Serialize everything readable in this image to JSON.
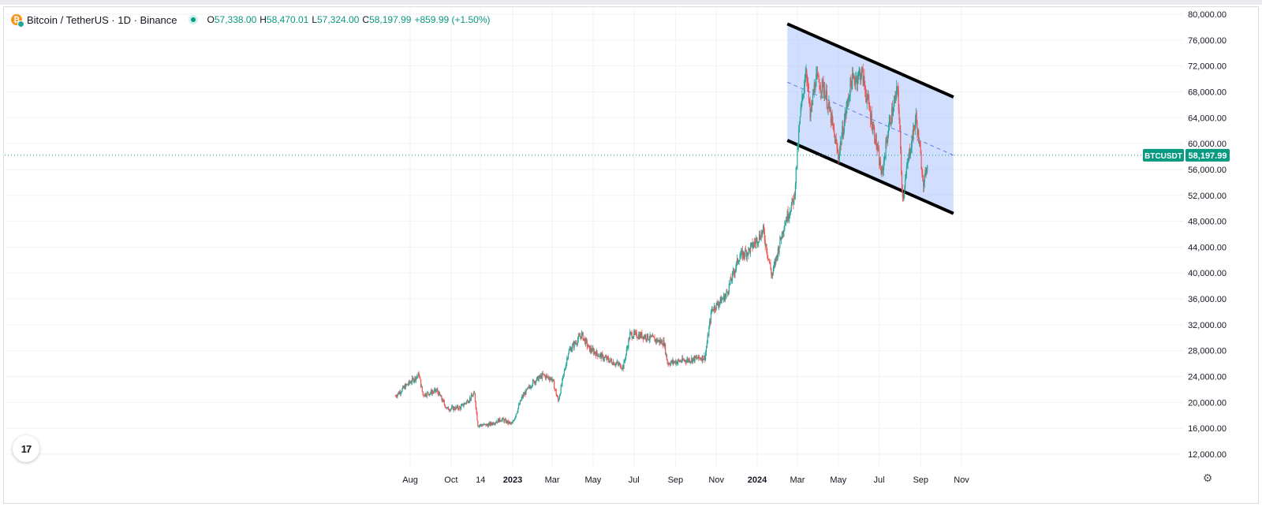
{
  "header": {
    "symbol": "Bitcoin / TetherUS · 1D · Binance",
    "open": "57,338.00",
    "high": "58,470.01",
    "low": "57,324.00",
    "close": "58,197.99",
    "change": "+859.99 (+1.50%)",
    "open_label": "O",
    "high_label": "H",
    "low_label": "L",
    "close_label": "C"
  },
  "colors": {
    "up": "#26a69a",
    "down": "#ef5350",
    "channel_fill": "#b3c8fb",
    "channel_line": "#000000",
    "midline": "#5b7be0",
    "price_tag": "#089981"
  },
  "chart_data": {
    "type": "candlestick",
    "interval": "1D",
    "x_axis_labels": [
      "Aug",
      "Oct",
      "14",
      "2023",
      "Mar",
      "May",
      "Jul",
      "Sep",
      "Nov",
      "2024",
      "Mar",
      "May",
      "Jul",
      "Sep",
      "Nov"
    ],
    "y_axis_labels": [
      "80,000.00",
      "76,000.00",
      "72,000.00",
      "68,000.00",
      "64,000.00",
      "60,000.00",
      "56,000.00",
      "52,000.00",
      "48,000.00",
      "44,000.00",
      "40,000.00",
      "36,000.00",
      "32,000.00",
      "28,000.00",
      "24,000.00",
      "20,000.00",
      "16,000.00",
      "12,000.00"
    ],
    "ylim": [
      10000,
      81000
    ],
    "last_price": 58197.99,
    "last_price_label": "58,197.99",
    "ticker_label": "BTCUSDT",
    "series": [
      {
        "values": [
          {
            "date": "2022-07-10",
            "close": 21000
          },
          {
            "date": "2022-07-25",
            "close": 22500
          },
          {
            "date": "2022-08-14",
            "close": 24300
          },
          {
            "date": "2022-08-20",
            "close": 21200
          },
          {
            "date": "2022-09-10",
            "close": 21800
          },
          {
            "date": "2022-09-25",
            "close": 19000
          },
          {
            "date": "2022-10-15",
            "close": 19200
          },
          {
            "date": "2022-11-05",
            "close": 21300
          },
          {
            "date": "2022-11-10",
            "close": 16500
          },
          {
            "date": "2022-11-25",
            "close": 16500
          },
          {
            "date": "2022-12-15",
            "close": 17400
          },
          {
            "date": "2022-12-31",
            "close": 16600
          },
          {
            "date": "2023-01-15",
            "close": 20800
          },
          {
            "date": "2023-01-31",
            "close": 23100
          },
          {
            "date": "2023-02-15",
            "close": 24200
          },
          {
            "date": "2023-03-01",
            "close": 23600
          },
          {
            "date": "2023-03-10",
            "close": 20200
          },
          {
            "date": "2023-03-25",
            "close": 27800
          },
          {
            "date": "2023-04-14",
            "close": 30500
          },
          {
            "date": "2023-04-25",
            "close": 28300
          },
          {
            "date": "2023-05-15",
            "close": 27000
          },
          {
            "date": "2023-06-15",
            "close": 25500
          },
          {
            "date": "2023-06-25",
            "close": 30500
          },
          {
            "date": "2023-07-15",
            "close": 30300
          },
          {
            "date": "2023-08-15",
            "close": 29200
          },
          {
            "date": "2023-08-20",
            "close": 26100
          },
          {
            "date": "2023-09-15",
            "close": 26500
          },
          {
            "date": "2023-10-15",
            "close": 27000
          },
          {
            "date": "2023-10-25",
            "close": 34300
          },
          {
            "date": "2023-11-15",
            "close": 36500
          },
          {
            "date": "2023-12-05",
            "close": 42500
          },
          {
            "date": "2023-12-20",
            "close": 43500
          },
          {
            "date": "2024-01-10",
            "close": 46500
          },
          {
            "date": "2024-01-23",
            "close": 39500
          },
          {
            "date": "2024-02-10",
            "close": 47500
          },
          {
            "date": "2024-02-25",
            "close": 51500
          },
          {
            "date": "2024-03-05",
            "close": 64000
          },
          {
            "date": "2024-03-14",
            "close": 72000
          },
          {
            "date": "2024-03-20",
            "close": 64000
          },
          {
            "date": "2024-03-28",
            "close": 70000
          },
          {
            "date": "2024-04-10",
            "close": 68500
          },
          {
            "date": "2024-04-20",
            "close": 64000
          },
          {
            "date": "2024-05-01",
            "close": 58000
          },
          {
            "date": "2024-05-20",
            "close": 69500
          },
          {
            "date": "2024-06-05",
            "close": 71000
          },
          {
            "date": "2024-06-25",
            "close": 61000
          },
          {
            "date": "2024-07-05",
            "close": 55000
          },
          {
            "date": "2024-07-15",
            "close": 62500
          },
          {
            "date": "2024-07-29",
            "close": 68500
          },
          {
            "date": "2024-08-05",
            "close": 51500
          },
          {
            "date": "2024-08-15",
            "close": 58500
          },
          {
            "date": "2024-08-25",
            "close": 64000
          },
          {
            "date": "2024-09-06",
            "close": 53500
          },
          {
            "date": "2024-09-12",
            "close": 58197.99
          }
        ]
      }
    ],
    "annotations": {
      "channel_upper": [
        {
          "date": "2024-02-15",
          "price": 78500
        },
        {
          "date": "2024-10-20",
          "price": 67200
        }
      ],
      "channel_lower": [
        {
          "date": "2024-02-15",
          "price": 60500
        },
        {
          "date": "2024-10-20",
          "price": 49200
        }
      ]
    }
  },
  "footer": {
    "logo_text": "17",
    "settings_icon": "gear-icon"
  }
}
